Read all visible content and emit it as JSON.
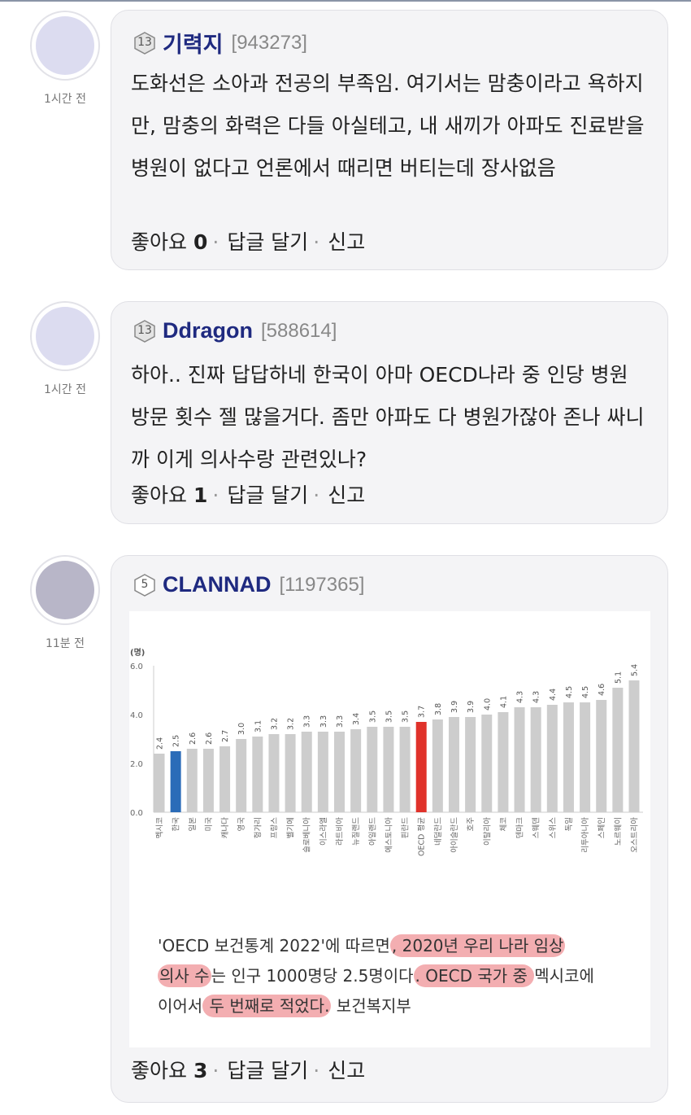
{
  "comments": [
    {
      "time": "1시간 전",
      "level": "13",
      "name": "기력지",
      "uid": "[943273]",
      "text": "도화선은 소아과 전공의 부족임. 여기서는 맘충이라고 욕하지만, 맘충의 화력은 다들 아실테고, 내 새끼가 아파도 진료받을 병원이 없다고 언론에서 때리면 버티는데 장사없음",
      "like_label": "좋아요",
      "like_count": "0",
      "reply_label": "답글 달기",
      "report_label": "신고"
    },
    {
      "time": "1시간 전",
      "level": "13",
      "name": "Ddragon",
      "uid": "[588614]",
      "text": "하아.. 진짜 답답하네 한국이 아마 OECD나라 중 인당 병원 방문 횟수 젤 많을거다. 좀만 아파도 다 병원가잖아 존나 싸니까 이게 의사수랑 관련있나?",
      "like_label": "좋아요",
      "like_count": "1",
      "reply_label": "답글 달기",
      "report_label": "신고"
    },
    {
      "time": "11분 전",
      "level": "5",
      "name": "CLANNAD",
      "uid": "[1197365]",
      "like_label": "좋아요",
      "like_count": "3",
      "reply_label": "답글 달기",
      "report_label": "신고",
      "caption": {
        "l1a": "'OECD 보건통계 2022'에 따르면",
        "l1b": ", 2020년 우리 나라 임상",
        "l2a": "의사 수",
        "l2b": "는 인구 1000명당 2.5명이다",
        "l2c": ". OECD 국가 중 ",
        "l2d": "멕시코에",
        "l3a": "이어서",
        "l3b": " 두 번째로 적었다.",
        "l3c": " 보건복지부"
      }
    }
  ],
  "chart_data": {
    "type": "bar",
    "ylabel": "(명)",
    "ylim": [
      0,
      6
    ],
    "yticks": [
      "0.0",
      "2.0",
      "4.0",
      "6.0"
    ],
    "categories": [
      "멕시코",
      "한국",
      "일본",
      "미국",
      "캐나다",
      "영국",
      "헝가리",
      "프랑스",
      "벨기에",
      "슬로베니아",
      "이스라엘",
      "라트비아",
      "뉴질랜드",
      "아일랜드",
      "에스토니아",
      "핀란드",
      "OECD 평균",
      "네덜란드",
      "아이슬란드",
      "호주",
      "이탈리아",
      "체코",
      "덴마크",
      "스웨덴",
      "스위스",
      "독일",
      "리투아니아",
      "스페인",
      "노르웨이",
      "오스트리아"
    ],
    "values": [
      2.4,
      2.5,
      2.6,
      2.6,
      2.7,
      3.0,
      3.1,
      3.2,
      3.2,
      3.3,
      3.3,
      3.3,
      3.4,
      3.5,
      3.5,
      3.5,
      3.7,
      3.8,
      3.9,
      3.9,
      4.0,
      4.1,
      4.3,
      4.3,
      4.4,
      4.5,
      4.5,
      4.6,
      5.1,
      5.4
    ],
    "colors": {
      "default": "#cdcdcd",
      "한국": "#2b6cb8",
      "OECD 평균": "#e0322a"
    }
  }
}
